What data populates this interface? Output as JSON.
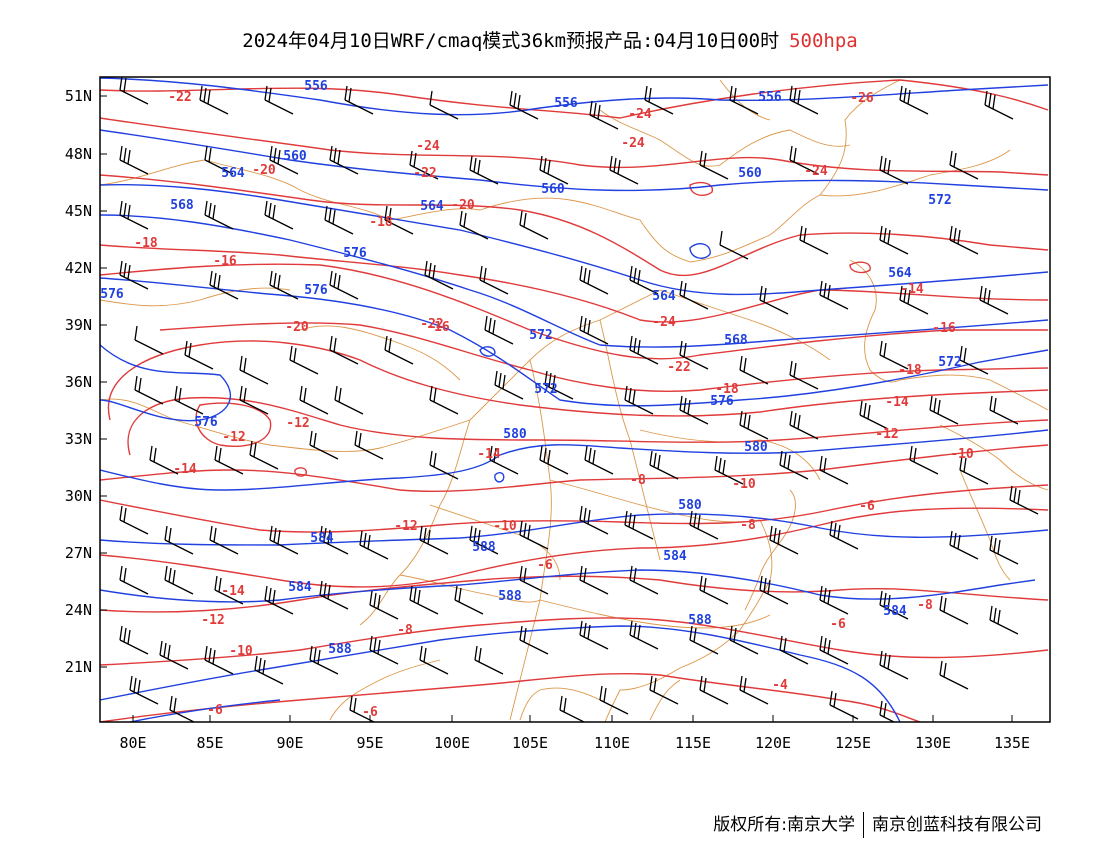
{
  "title": {
    "main": "2024年04月10日WRF/cmaq模式36km预报产品:04月10日00时",
    "level": "500hpa"
  },
  "map": {
    "lon_ticks": [
      "80E",
      "85E",
      "90E",
      "95E",
      "100E",
      "105E",
      "110E",
      "115E",
      "120E",
      "125E",
      "130E",
      "135E"
    ],
    "lat_ticks": [
      "51N",
      "48N",
      "45N",
      "42N",
      "39N",
      "36N",
      "33N",
      "30N",
      "27N",
      "24N",
      "21N"
    ],
    "colors": {
      "height_contour": "#2040e0",
      "temperature_contour": "#e03a3a",
      "boundaries": "#d98b35",
      "wind_barbs": "#000000"
    },
    "height_labels": [
      "556",
      "556",
      "556",
      "560",
      "564",
      "560",
      "560",
      "568",
      "564",
      "572",
      "576",
      "576",
      "564",
      "572",
      "568",
      "576",
      "564",
      "572",
      "576",
      "572",
      "576",
      "580",
      "580",
      "580",
      "584",
      "588",
      "584",
      "588",
      "584",
      "584",
      "588",
      "588"
    ],
    "temperature_labels": [
      "-22",
      "-24",
      "-26",
      "-24",
      "-24",
      "-20",
      "-22",
      "-24",
      "-20",
      "-18",
      "-18",
      "-16",
      "-24",
      "-22",
      "-22",
      "-20",
      "-14",
      "-16",
      "-18",
      "-18",
      "-16",
      "-14",
      "-12",
      "-12",
      "-14",
      "-14",
      "-12",
      "-10",
      "-10",
      "-12",
      "-10",
      "-8",
      "-6",
      "-8",
      "-14",
      "-12",
      "-6",
      "-10",
      "-8",
      "-6",
      "-6",
      "-4",
      "-6",
      "-8"
    ]
  },
  "footer": {
    "owner1": "版权所有:南京大学",
    "owner2": "南京创蓝科技有限公司"
  }
}
